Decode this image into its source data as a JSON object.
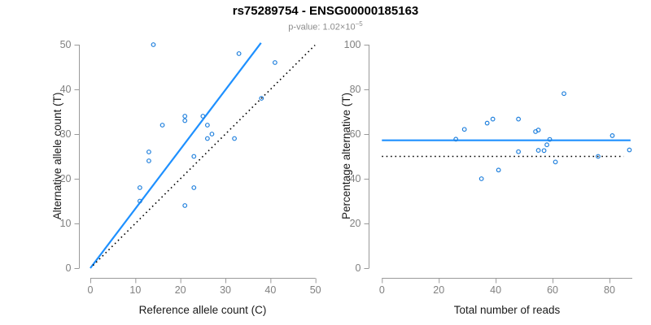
{
  "header": {
    "title": "rs75289754 - ENSG00000185163",
    "p_text": "p-value: 1.02×10",
    "p_exp": "−5"
  },
  "colors": {
    "line_blue": "#1E90FF",
    "point_blue": "#2080DD",
    "dotted_black": "#000000",
    "axis_gray": "#9A9A9A",
    "tick_label_gray": "#808080",
    "axis_title": "#1A1A1A",
    "subtitle_gray": "#8C8C8C"
  },
  "chart_data": [
    {
      "type": "scatter",
      "panel": "allele-counts",
      "xlabel": "Reference allele count (C)",
      "ylabel": "Alternative allele count (T)",
      "xlim": [
        0,
        50
      ],
      "ylim": [
        0,
        50
      ],
      "xticks": [
        0,
        10,
        20,
        30,
        40,
        50
      ],
      "yticks": [
        0,
        10,
        20,
        30,
        40,
        50
      ],
      "grid": false,
      "points": [
        [
          14,
          50
        ],
        [
          33,
          48
        ],
        [
          41,
          46
        ],
        [
          38,
          38
        ],
        [
          21,
          34
        ],
        [
          25,
          34
        ],
        [
          21,
          33
        ],
        [
          16,
          32
        ],
        [
          26,
          32
        ],
        [
          27,
          30
        ],
        [
          26,
          29
        ],
        [
          32,
          29
        ],
        [
          13,
          26
        ],
        [
          23,
          25
        ],
        [
          13,
          24
        ],
        [
          11,
          18
        ],
        [
          23,
          18
        ],
        [
          11,
          15
        ],
        [
          21,
          14
        ]
      ],
      "lines": [
        {
          "name": "fit-line",
          "style": "solid",
          "x1": 0,
          "y1": 0,
          "x2": 37.9,
          "y2": 50.4
        },
        {
          "name": "identity-line",
          "style": "dotted",
          "x1": 0.6,
          "y1": 0.6,
          "x2": 49.9,
          "y2": 49.9
        }
      ]
    },
    {
      "type": "scatter",
      "panel": "percentage-vs-coverage",
      "xlabel": "Total number of reads",
      "ylabel": "Percentage alternative (T)",
      "xlim": [
        0,
        88
      ],
      "ylim": [
        0,
        100
      ],
      "xticks": [
        0,
        20,
        40,
        60,
        80
      ],
      "yticks": [
        0,
        20,
        40,
        60,
        80,
        100
      ],
      "grid": false,
      "points": [
        [
          64,
          78.1
        ],
        [
          81,
          59.3
        ],
        [
          87,
          52.9
        ],
        [
          76,
          50
        ],
        [
          55,
          61.8
        ],
        [
          59,
          57.6
        ],
        [
          54,
          61.1
        ],
        [
          48,
          66.7
        ],
        [
          58,
          55.2
        ],
        [
          57,
          52.6
        ],
        [
          55,
          52.7
        ],
        [
          61,
          47.5
        ],
        [
          39,
          66.7
        ],
        [
          48,
          52.1
        ],
        [
          37,
          64.9
        ],
        [
          29,
          62.1
        ],
        [
          41,
          43.9
        ],
        [
          26,
          57.7
        ],
        [
          35,
          40
        ]
      ],
      "lines": [
        {
          "name": "mean-percentage-line",
          "style": "solid",
          "x1": 0,
          "y1": 57.2,
          "x2": 87.4,
          "y2": 57.2
        },
        {
          "name": "fifty-percent-line",
          "style": "dotted",
          "x1": 0,
          "y1": 50,
          "x2": 85,
          "y2": 50
        }
      ]
    }
  ]
}
